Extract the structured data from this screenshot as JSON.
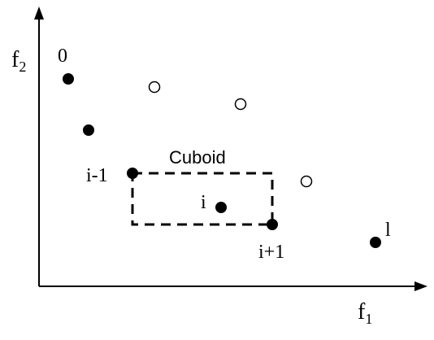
{
  "axes": {
    "x_label_main": "f",
    "x_label_sub": "1",
    "y_label_main": "f",
    "y_label_sub": "2"
  },
  "cuboid_label": "Cuboid",
  "point_labels": {
    "first": "0",
    "prev": "i-1",
    "current": "i",
    "next": "i+1",
    "last": "l"
  },
  "colors": {
    "stroke": "#000000",
    "background": "#ffffff"
  }
}
